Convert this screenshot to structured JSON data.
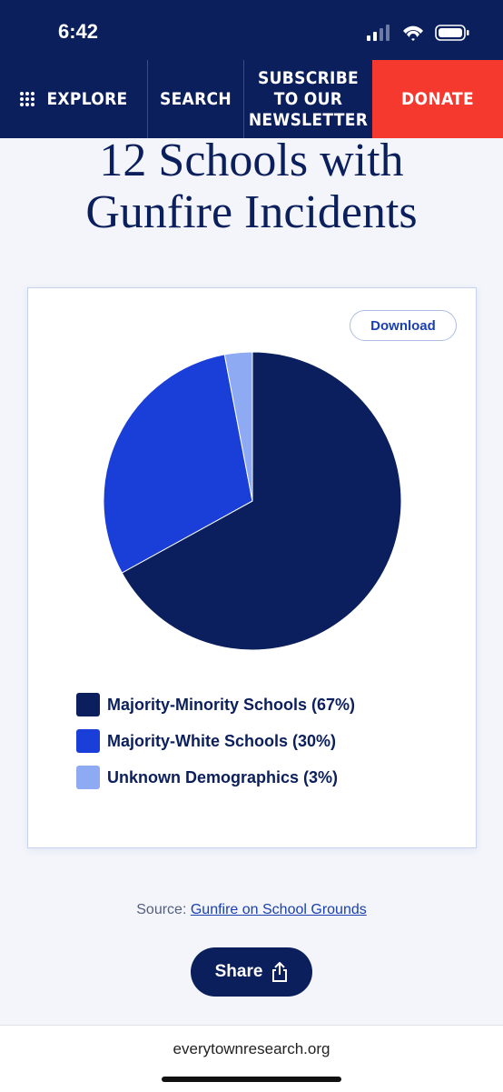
{
  "status_bar": {
    "time": "6:42"
  },
  "nav": {
    "explore": "EXPLORE",
    "search": "SEARCH",
    "subscribe": [
      "SUBSCRIBE",
      "TO OUR",
      "NEWSLETTER"
    ],
    "donate": "DONATE"
  },
  "heading": [
    "12 Schools with",
    "Gunfire Incidents"
  ],
  "download": "Download",
  "chart_data": {
    "type": "pie",
    "categories": [
      "Majority-Minority Schools (67%)",
      "Majority-White Schools (30%)",
      "Unknown Demographics (3%)"
    ],
    "values": [
      67,
      30,
      3
    ],
    "colors": [
      "#0b1f5e",
      "#1a3fd8",
      "#8eaaf2"
    ]
  },
  "source": {
    "label": "Source:",
    "link": "Gunfire on School Grounds"
  },
  "share": "Share",
  "footer": "everytownresearch.org"
}
